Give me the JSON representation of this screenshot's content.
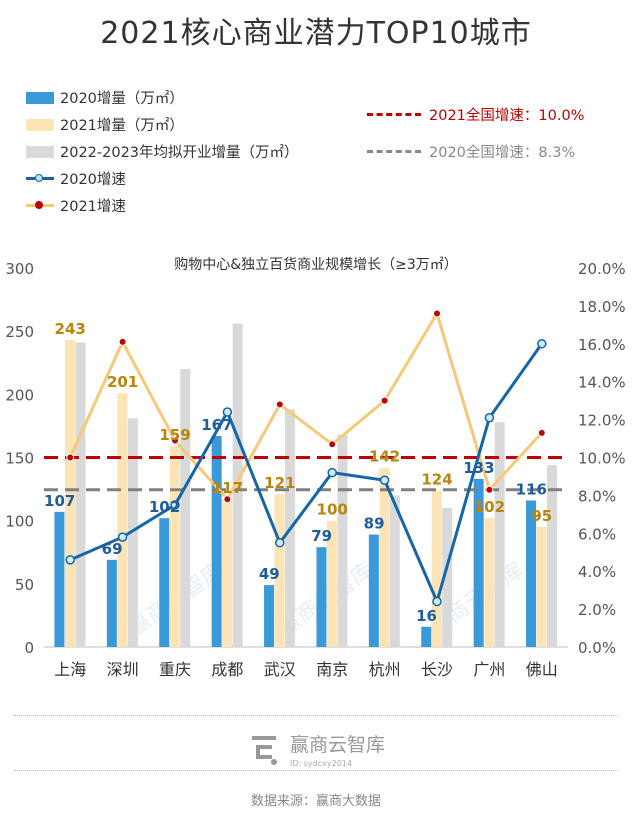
{
  "title": "2021核心商业潜力TOP10城市",
  "legend": {
    "bar2020": "2020增量（万㎡）",
    "bar2021": "2021增量（万㎡）",
    "bar2223": "2022-2023年均拟开业增量（万㎡）",
    "line2020": "2020增速",
    "line2021": "2021增速",
    "ref2021": "2021全国增速：10.0%",
    "ref2020": "2020全国增速：8.3%"
  },
  "footer": {
    "brand": "赢商云智库",
    "brand_id": "ID: sydcxy2014",
    "source": "数据来源：赢商大数据"
  },
  "watermark": "赢商云智库",
  "colors": {
    "bar2020": "#3a9ad9",
    "bar2021": "#fce4b6",
    "bar2223": "#d9d9d9",
    "line2020": "#1565a8",
    "line2021": "#f7c878",
    "marker2021": "#c00000",
    "ref2021": "#c00000",
    "ref2020": "#808080",
    "label2020": "#1e5d9c",
    "label2021": "#b8860b"
  },
  "chart_data": {
    "type": "bar",
    "title": "购物中心&独立百货商业规模增长（≥3万㎡）",
    "categories": [
      "上海",
      "深圳",
      "重庆",
      "成都",
      "武汉",
      "南京",
      "杭州",
      "长沙",
      "广州",
      "佛山"
    ],
    "y_left": {
      "min": 0,
      "max": 300,
      "ticks": [
        0,
        50,
        100,
        150,
        200,
        250,
        300
      ]
    },
    "y_right": {
      "min": 0,
      "max": 20,
      "ticks": [
        "0.0%",
        "2.0%",
        "4.0%",
        "6.0%",
        "8.0%",
        "10.0%",
        "12.0%",
        "14.0%",
        "16.0%",
        "18.0%",
        "20.0%"
      ]
    },
    "series": [
      {
        "name": "2020增量（万㎡）",
        "type": "bar",
        "axis": "left",
        "values": [
          107,
          69,
          102,
          167,
          49,
          79,
          89,
          16,
          133,
          116
        ],
        "labels": true
      },
      {
        "name": "2021增量（万㎡）",
        "type": "bar",
        "axis": "left",
        "values": [
          243,
          201,
          159,
          117,
          121,
          100,
          142,
          124,
          102,
          95
        ],
        "labels": true
      },
      {
        "name": "2022-2023年均拟开业增量（万㎡）",
        "type": "bar",
        "axis": "left",
        "values": [
          241,
          181,
          220,
          256,
          188,
          168,
          120,
          110,
          178,
          144
        ],
        "labels": false
      },
      {
        "name": "2020增速",
        "type": "line",
        "axis": "right",
        "values": [
          4.6,
          5.8,
          7.5,
          12.4,
          5.5,
          9.2,
          8.8,
          2.4,
          12.1,
          16.0
        ]
      },
      {
        "name": "2021增速",
        "type": "line",
        "axis": "right",
        "values": [
          10.0,
          16.1,
          10.9,
          7.8,
          12.8,
          10.7,
          13.0,
          17.6,
          8.3,
          11.3
        ]
      }
    ],
    "reference_lines": [
      {
        "name": "2021全国增速",
        "value": 10.0
      },
      {
        "name": "2020全国增速",
        "value": 8.3
      }
    ]
  }
}
